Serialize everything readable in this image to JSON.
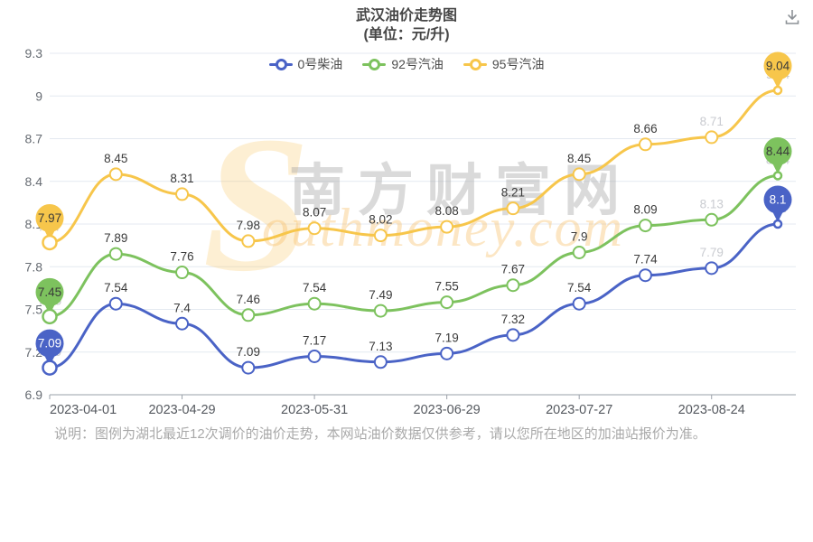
{
  "header": {
    "title": "武汉油价走势图",
    "subtitle": "(单位：元/升)"
  },
  "toolbar": {
    "download_icon": "download-icon"
  },
  "watermark": {
    "initial": "S",
    "en_text": "outhmoney.com",
    "cn_text": "南方财富网"
  },
  "chart_data": {
    "type": "line",
    "title": "武汉油价走势图",
    "unit_label": "(单位：元/升)",
    "legend_position": "top",
    "grid": true,
    "num_points": 12,
    "x_tick_labels": [
      "2023-04-01",
      "2023-04-29",
      "2023-05-31",
      "2023-06-29",
      "2023-07-27",
      "2023-08-24"
    ],
    "x_tick_indices": [
      0,
      2,
      4,
      6,
      8,
      10
    ],
    "ylim": [
      6.9,
      9.3
    ],
    "y_ticks": [
      "6.9",
      "7.2",
      "7.5",
      "7.8",
      "8.1",
      "8.4",
      "8.7",
      "9",
      "9.3"
    ],
    "series": [
      {
        "name": "0号柴油",
        "color": "#4a63c6",
        "balloon_text_color": "#ffffff",
        "values": [
          7.09,
          7.54,
          7.4,
          7.09,
          7.17,
          7.13,
          7.19,
          7.32,
          7.54,
          7.74,
          7.79,
          8.1
        ]
      },
      {
        "name": "92号汽油",
        "color": "#7dc25e",
        "balloon_text_color": "#3a3a3a",
        "values": [
          7.45,
          7.89,
          7.76,
          7.46,
          7.54,
          7.49,
          7.55,
          7.67,
          7.9,
          8.09,
          8.13,
          8.44
        ]
      },
      {
        "name": "95号汽油",
        "color": "#f7c64b",
        "balloon_text_color": "#3a3a3a",
        "values": [
          7.97,
          8.45,
          8.31,
          7.98,
          8.07,
          8.02,
          8.08,
          8.21,
          8.45,
          8.66,
          8.71,
          9.04
        ]
      }
    ],
    "label_colors": {
      "normal": "#3a3a3a",
      "faded": "#c9cbd0"
    },
    "faded_label_indices": [
      0,
      10,
      11
    ],
    "balloon_indices": [
      0,
      11
    ]
  },
  "footer": {
    "note": "说明：图例为湖北最近12次调价的油价走势，本网站油价数据仅供参考，请以您所在地区的加油站报价为准。"
  }
}
